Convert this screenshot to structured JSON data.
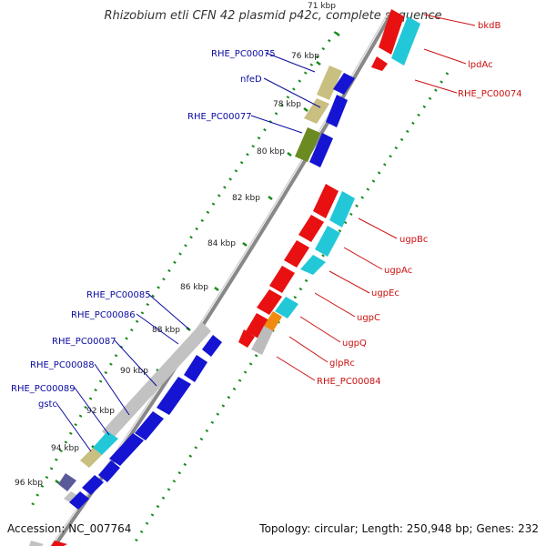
{
  "title": "Rhizobium etli CFN 42 plasmid p42c, complete sequence",
  "accession": "Accession: NC_007764",
  "summary": "Topology: circular; Length: 250,948 bp; Genes: 232",
  "colors": {
    "forward_cds": "#1414d2",
    "reverse_cds": "#e81010",
    "cyan_feature": "#22c8d8",
    "olive_feature": "#c8bf80",
    "dark_olive_feature": "#6b8a22",
    "gray_feature": "#bcbcbc",
    "orange_feature": "#f08a10",
    "backbone": "#888888",
    "dot_ring": "#1a8a1a",
    "left_label": "#0a0aa0",
    "right_label": "#cc1010"
  },
  "map": {
    "ticks": [
      {
        "label": "71 kbp"
      },
      {
        "label": "76 kbp"
      },
      {
        "label": "78 kbp"
      },
      {
        "label": "80 kbp"
      },
      {
        "label": "82 kbp"
      },
      {
        "label": "84 kbp"
      },
      {
        "label": "86 kbp"
      },
      {
        "label": "88 kbp"
      },
      {
        "label": "90 kbp"
      },
      {
        "label": "92 kbp"
      },
      {
        "label": "94 kbp"
      },
      {
        "label": "96 kbp"
      }
    ],
    "left_labels": [
      {
        "text": "RHE_PC00075"
      },
      {
        "text": "nfeD"
      },
      {
        "text": "RHE_PC00077"
      },
      {
        "text": "RHE_PC00085"
      },
      {
        "text": "RHE_PC00086"
      },
      {
        "text": "RHE_PC00087"
      },
      {
        "text": "RHE_PC00088"
      },
      {
        "text": "RHE_PC00089"
      },
      {
        "text": "gstc"
      }
    ],
    "right_labels": [
      {
        "text": "bkdB"
      },
      {
        "text": "lpdAc"
      },
      {
        "text": "RHE_PC00074"
      },
      {
        "text": "ugpBc"
      },
      {
        "text": "ugpAc"
      },
      {
        "text": "ugpEc"
      },
      {
        "text": "ugpC"
      },
      {
        "text": "ugpQ"
      },
      {
        "text": "glpRc"
      },
      {
        "text": "RHE_PC00084"
      }
    ]
  }
}
